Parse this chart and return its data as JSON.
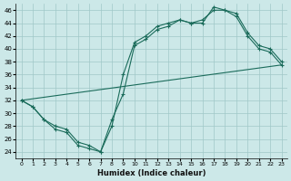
{
  "xlabel": "Humidex (Indice chaleur)",
  "xlim": [
    -0.5,
    23.5
  ],
  "ylim": [
    23,
    47
  ],
  "yticks": [
    24,
    26,
    28,
    30,
    32,
    34,
    36,
    38,
    40,
    42,
    44,
    46
  ],
  "xticks": [
    0,
    1,
    2,
    3,
    4,
    5,
    6,
    7,
    8,
    9,
    10,
    11,
    12,
    13,
    14,
    15,
    16,
    17,
    18,
    19,
    20,
    21,
    22,
    23
  ],
  "background_color": "#cce8e8",
  "grid_color": "#a0c8c8",
  "line_color": "#1a6b5a",
  "line1": {
    "x": [
      0,
      1,
      2,
      3,
      4,
      5,
      6,
      7,
      8,
      9,
      10,
      11,
      12,
      13,
      14,
      15,
      16,
      17,
      18,
      19,
      20,
      21,
      22,
      23
    ],
    "y": [
      32,
      31,
      29,
      27.5,
      27,
      25,
      24.5,
      24,
      29,
      33,
      40.5,
      41.5,
      43,
      43.5,
      44.5,
      44,
      44,
      46.5,
      46,
      45,
      42,
      40,
      39.5,
      37.5
    ]
  },
  "line2": {
    "x": [
      0,
      1,
      2,
      3,
      4,
      5,
      6,
      7,
      8,
      9,
      10,
      11,
      12,
      13,
      14,
      15,
      16,
      17,
      18,
      19,
      20,
      21,
      22,
      23
    ],
    "y": [
      32,
      31,
      29,
      28,
      27.5,
      25.5,
      25,
      24,
      28,
      36,
      41,
      42,
      43.5,
      44,
      44.5,
      44,
      44.5,
      46,
      46,
      45.5,
      42.5,
      40.5,
      40,
      38
    ]
  },
  "line3": {
    "x": [
      0,
      23
    ],
    "y": [
      32,
      37.5
    ]
  }
}
